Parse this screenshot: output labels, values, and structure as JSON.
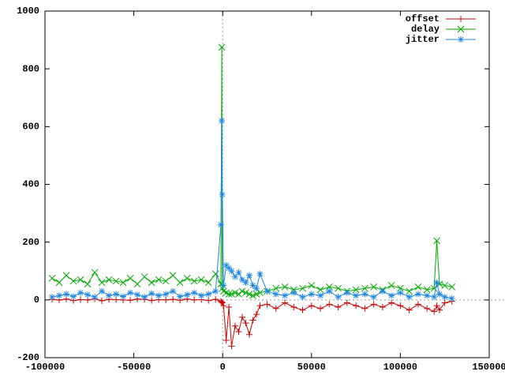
{
  "chart_data": {
    "type": "line",
    "x": [
      -96000,
      -92000,
      -88000,
      -84000,
      -80000,
      -76000,
      -72000,
      -68000,
      -64000,
      -60000,
      -56000,
      -52000,
      -48000,
      -44000,
      -40000,
      -36000,
      -32000,
      -28000,
      -24000,
      -20000,
      -16000,
      -12000,
      -8000,
      -4000,
      -1000,
      -500,
      -200,
      500,
      2000,
      3500,
      5000,
      7000,
      9000,
      11000,
      13000,
      15000,
      17000,
      19000,
      21000,
      25000,
      30000,
      35000,
      40000,
      45000,
      50000,
      55000,
      60000,
      65000,
      70000,
      75000,
      80000,
      85000,
      90000,
      95000,
      100000,
      105000,
      110000,
      115000,
      119000,
      120500,
      122000,
      125000,
      129000
    ],
    "series": [
      {
        "name": "offset",
        "color": "#cc0000",
        "marker": "plus",
        "values": [
          2,
          0,
          3,
          -2,
          1,
          0,
          4,
          -3,
          2,
          1,
          0,
          -1,
          3,
          2,
          -2,
          1,
          0,
          2,
          -1,
          3,
          0,
          1,
          -2,
          2,
          -5,
          -8,
          -10,
          -20,
          -140,
          -25,
          -160,
          -90,
          -110,
          -60,
          -80,
          -120,
          -70,
          -50,
          -20,
          -15,
          -30,
          -10,
          -25,
          -35,
          -20,
          -30,
          -15,
          -25,
          -10,
          -20,
          -30,
          -15,
          -25,
          -10,
          -20,
          -35,
          -15,
          -30,
          -40,
          -20,
          -35,
          -10,
          -5
        ]
      },
      {
        "name": "delay",
        "color": "#00aa00",
        "marker": "cross",
        "values": [
          75,
          60,
          85,
          65,
          70,
          55,
          95,
          60,
          70,
          65,
          60,
          75,
          55,
          80,
          60,
          70,
          65,
          85,
          60,
          75,
          65,
          70,
          60,
          90,
          55,
          875,
          40,
          30,
          25,
          20,
          20,
          25,
          20,
          30,
          25,
          20,
          15,
          20,
          25,
          30,
          40,
          45,
          35,
          40,
          50,
          35,
          45,
          40,
          30,
          35,
          40,
          45,
          35,
          50,
          40,
          30,
          45,
          35,
          40,
          205,
          55,
          50,
          45
        ]
      },
      {
        "name": "jitter",
        "color": "#1e88e5",
        "marker": "star",
        "values": [
          10,
          15,
          20,
          12,
          25,
          18,
          10,
          30,
          15,
          20,
          12,
          25,
          18,
          10,
          22,
          15,
          20,
          30,
          12,
          18,
          25,
          15,
          20,
          30,
          260,
          620,
          365,
          50,
          120,
          110,
          100,
          80,
          95,
          70,
          60,
          85,
          50,
          40,
          90,
          30,
          20,
          15,
          25,
          10,
          20,
          15,
          30,
          10,
          25,
          15,
          20,
          10,
          30,
          15,
          25,
          10,
          20,
          15,
          10,
          60,
          20,
          10,
          5
        ]
      }
    ],
    "xlim": [
      -100000,
      150000
    ],
    "xticks": [
      -100000,
      -50000,
      0,
      50000,
      100000,
      150000
    ],
    "ylim": [
      -200,
      1000
    ],
    "yticks": [
      -200,
      0,
      200,
      400,
      600,
      800,
      1000
    ],
    "legend": "top right"
  }
}
